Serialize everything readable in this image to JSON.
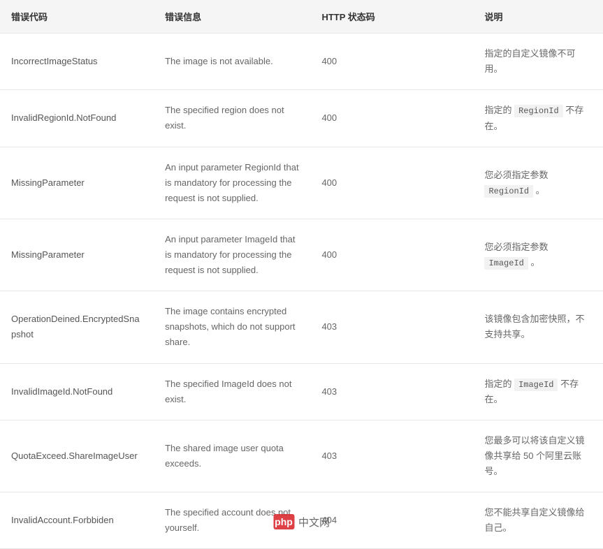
{
  "table": {
    "columns": [
      {
        "key": "code",
        "label": "错误代码"
      },
      {
        "key": "message",
        "label": "错误信息"
      },
      {
        "key": "status",
        "label": "HTTP 状态码"
      },
      {
        "key": "description",
        "label": "说明"
      }
    ],
    "rows": [
      {
        "code": "IncorrectImageStatus",
        "message": "The image is not available.",
        "status": "400",
        "desc_parts": [
          {
            "type": "text",
            "value": "指定的自定义镜像不可用。"
          }
        ]
      },
      {
        "code": "InvalidRegionId.NotFound",
        "message": "The specified region does not exist.",
        "status": "400",
        "desc_parts": [
          {
            "type": "text",
            "value": "指定的 "
          },
          {
            "type": "code",
            "value": "RegionId"
          },
          {
            "type": "text",
            "value": " 不存在。"
          }
        ]
      },
      {
        "code": "MissingParameter",
        "message": "An input parameter RegionId that is mandatory for processing the request is not supplied.",
        "status": "400",
        "desc_parts": [
          {
            "type": "text",
            "value": "您必须指定参数 "
          },
          {
            "type": "code",
            "value": "RegionId"
          },
          {
            "type": "text",
            "value": " 。"
          }
        ]
      },
      {
        "code": "MissingParameter",
        "message": "An input parameter ImageId that is mandatory for processing the request is not supplied.",
        "status": "400",
        "desc_parts": [
          {
            "type": "text",
            "value": "您必须指定参数 "
          },
          {
            "type": "code",
            "value": "ImageId"
          },
          {
            "type": "text",
            "value": " 。"
          }
        ]
      },
      {
        "code": "OperationDeined.EncryptedSnapshot",
        "message": "The image contains encrypted snapshots, which do not support share.",
        "status": "403",
        "desc_parts": [
          {
            "type": "text",
            "value": "该镜像包含加密快照，不支持共享。"
          }
        ]
      },
      {
        "code": "InvalidImageId.NotFound",
        "message": "The specified ImageId does not exist.",
        "status": "403",
        "desc_parts": [
          {
            "type": "text",
            "value": "指定的 "
          },
          {
            "type": "code",
            "value": "ImageId"
          },
          {
            "type": "text",
            "value": " 不存在。"
          }
        ]
      },
      {
        "code": "QuotaExceed.ShareImageUser",
        "message": "The shared image user quota exceeds.",
        "status": "403",
        "desc_parts": [
          {
            "type": "text",
            "value": "您最多可以将该自定义镜像共享给 50 个阿里云账号。"
          }
        ]
      },
      {
        "code": "InvalidAccount.Forbbiden",
        "message": "The specified account does not yourself.",
        "status": "404",
        "desc_parts": [
          {
            "type": "text",
            "value": "您不能共享自定义镜像给自己。"
          }
        ]
      }
    ]
  },
  "watermark": {
    "logo_text": "php",
    "site_text": "中文网",
    "logo_bg": "#d9262c",
    "logo_color": "#ffffff"
  },
  "styles": {
    "header_bg": "#f5f5f5",
    "border_color": "#e6e6e6",
    "text_color": "#666666",
    "header_text_color": "#333333",
    "code_bg": "#f2f2f2",
    "font_size_body": 13,
    "font_size_code": 12,
    "line_height": 1.7,
    "col_widths_pct": [
      25.5,
      26,
      27,
      21.5
    ]
  }
}
